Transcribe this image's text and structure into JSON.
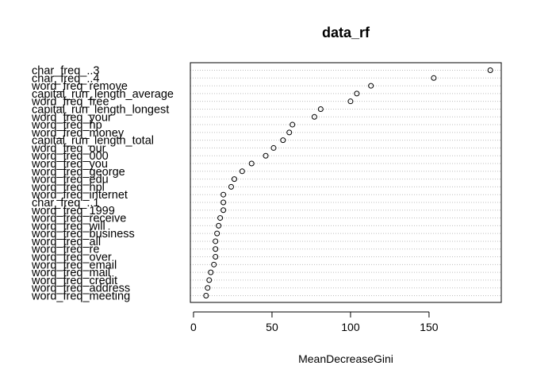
{
  "chart_data": {
    "type": "scatter",
    "style": "dotchart",
    "title": "data_rf",
    "xlabel": "MeanDecreaseGini",
    "ylabel": "",
    "xlim": [
      -2,
      196
    ],
    "xticks": [
      0,
      50,
      100,
      150
    ],
    "grid": "dotted horizontal lines per row",
    "marker": "open circle",
    "categories": [
      "char_freq_..3",
      "char_freq_..4",
      "word_freq_remove",
      "capital_run_length_average",
      "word_freq_free",
      "capital_run_length_longest",
      "word_freq_your",
      "word_freq_hp",
      "word_freq_money",
      "capital_run_length_total",
      "word_freq_our",
      "word_freq_000",
      "word_freq_you",
      "word_freq_george",
      "word_freq_edu",
      "word_freq_hpl",
      "word_freq_internet",
      "char_freq_..1",
      "word_freq_1999",
      "word_freq_receive",
      "word_freq_will",
      "word_freq_business",
      "word_freq_all",
      "word_freq_re",
      "word_freq_over",
      "word_freq_email",
      "word_freq_mail",
      "word_freq_credit",
      "word_freq_address",
      "word_freq_meeting"
    ],
    "values": [
      189,
      153,
      113,
      104,
      100,
      81,
      77,
      63,
      61,
      57,
      51,
      46,
      37,
      31,
      26,
      24,
      19,
      19,
      19,
      17,
      16,
      15,
      14,
      14,
      14,
      13,
      11,
      10,
      9,
      8
    ]
  }
}
